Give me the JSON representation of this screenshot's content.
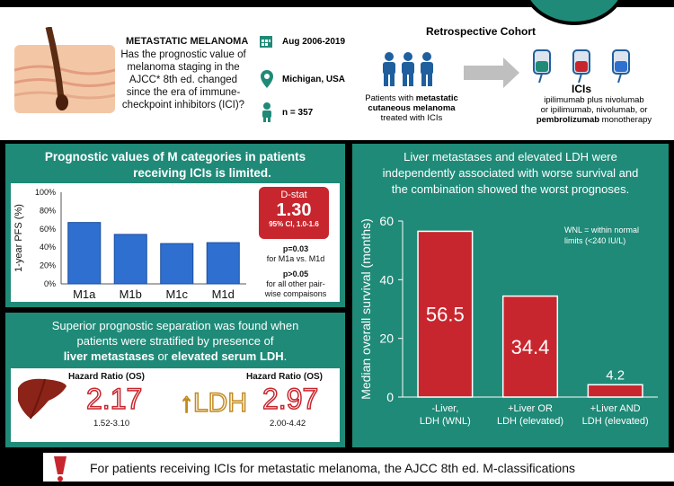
{
  "header": {
    "title": "METASTATIC MELANOMA",
    "question": "Has the prognostic value of melanoma staging in the AJCC* 8th ed. changed since the era of immune-checkpoint inhibitors (ICI)?",
    "date_range": "Aug 2006-2019",
    "location": "Michigan, USA",
    "n": "n = 357",
    "cohort_title": "Retrospective Cohort",
    "patients_prefix": "Patients with ",
    "patients_bold": "metastatic cutaneous melanoma",
    "patients_suffix": " treated with ICIs",
    "icis_title": "ICIs",
    "icis_l1": "ipilimumab plus nivolumab",
    "icis_l2": "or ipilimumab, nivolumab, or",
    "icis_l3_bold": "pembrolizumab",
    "icis_l3_rest": " monotherapy"
  },
  "panel_m": {
    "title_l1": "Prognostic values of M categories in patients",
    "title_l2": "receiving ICIs is limited.",
    "dstat_label": "D-stat",
    "dstat_value": "1.30",
    "dstat_ci": "95% CI, 1.0-1.6",
    "p1": "p=0.03",
    "p1_desc": "for M1a vs. M1d",
    "p2": "p>0.05",
    "p2_desc_l1": "for all other pair-",
    "p2_desc_l2": "wise compaisons"
  },
  "panel_ldh": {
    "title_l1": "Superior prognostic separation was found when",
    "title_l2": "patients were stratified by presence of",
    "title_bold1": "liver metastases",
    "title_mid": " or ",
    "title_bold2": "elevated serum LDH",
    "title_end": ".",
    "hr1_label": "Hazard Ratio (OS)",
    "hr1_value": "2.17",
    "hr1_ci": "1.52-3.10",
    "ldh_arrow": "↑",
    "ldh_text": "LDH",
    "hr2_label": "Hazard Ratio (OS)",
    "hr2_value": "2.97",
    "hr2_ci": "2.00-4.42"
  },
  "panel_os": {
    "title_l1": "Liver metastases and elevated LDH were",
    "title_l2": "independently associated with worse survival and",
    "title_l3": "the combination showed the worst prognoses.",
    "note_l1": "WNL = within normal",
    "note_l2": "limits (<240 IU/L)"
  },
  "footer": {
    "text": "For patients receiving ICIs for metastatic melanoma, the AJCC 8th ed. M-classifications"
  },
  "chart_data": [
    {
      "type": "bar",
      "categories": [
        "M1a",
        "M1b",
        "M1c",
        "M1d"
      ],
      "values": [
        67,
        54,
        44,
        45
      ],
      "ylabel": "1-year PFS (%)",
      "ylim": [
        0,
        100
      ],
      "yticks": [
        "0%",
        "20%",
        "40%",
        "60%",
        "80%",
        "100%"
      ],
      "bar_color": "#2f6fcf"
    },
    {
      "type": "bar",
      "categories": [
        [
          "-Liver,",
          "LDH (WNL)"
        ],
        [
          "+Liver OR",
          "LDH (elevated)"
        ],
        [
          "+Liver AND",
          "LDH (elevated)"
        ]
      ],
      "values": [
        56.5,
        34.4,
        4.2
      ],
      "labels": [
        "56.5",
        "34.4",
        "4.2"
      ],
      "ylabel": "Median overall survival (months)",
      "ylim": [
        0,
        60
      ],
      "yticks": [
        "0",
        "20",
        "40",
        "60"
      ],
      "bar_color": "#c8262e"
    }
  ]
}
